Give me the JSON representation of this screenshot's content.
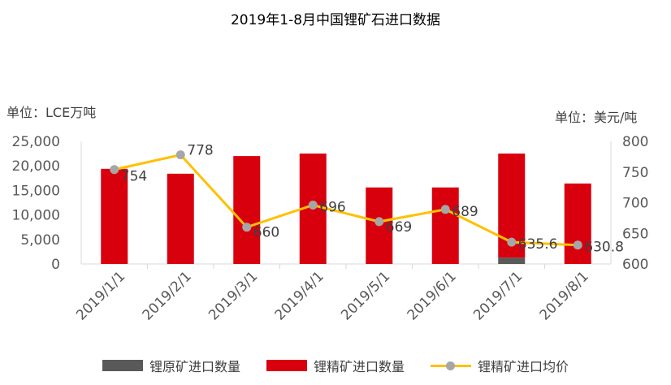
{
  "chart_data": {
    "type": "bar",
    "title": "2019年1-8月中国锂矿石进口数据",
    "left_unit": "单位：LCE万吨",
    "right_unit": "单位：美元/吨",
    "categories": [
      "2019/1/1",
      "2019/2/1",
      "2019/3/1",
      "2019/4/1",
      "2019/5/1",
      "2019/6/1",
      "2019/7/1",
      "2019/8/1"
    ],
    "series": [
      {
        "name": "锂原矿进口数量",
        "type": "bar",
        "axis": "left",
        "color": "#595959",
        "values": [
          0,
          0,
          0,
          0,
          0,
          0,
          1300,
          0
        ]
      },
      {
        "name": "锂精矿进口数量",
        "type": "bar",
        "axis": "left",
        "color": "#d9000d",
        "values": [
          19400,
          18400,
          22000,
          22500,
          15600,
          15600,
          21200,
          16400
        ]
      },
      {
        "name": "锂精矿进口均价",
        "type": "line",
        "axis": "right",
        "color": "#ffc000",
        "marker_color": "#a6a6a6",
        "values": [
          754,
          778,
          660,
          696,
          669,
          689,
          635.6,
          630.8
        ],
        "labels": [
          "754",
          "778",
          "660",
          "696",
          "669",
          "689",
          "635.6",
          "630.8"
        ]
      }
    ],
    "left_axis": {
      "range": [
        0,
        25000
      ],
      "ticks": [
        "0",
        "5,000",
        "10,000",
        "15,000",
        "20,000",
        "25,000"
      ]
    },
    "right_axis": {
      "range": [
        600,
        800
      ],
      "ticks": [
        "600",
        "650",
        "700",
        "750",
        "800"
      ]
    },
    "legend_position": "bottom",
    "grid": false
  }
}
